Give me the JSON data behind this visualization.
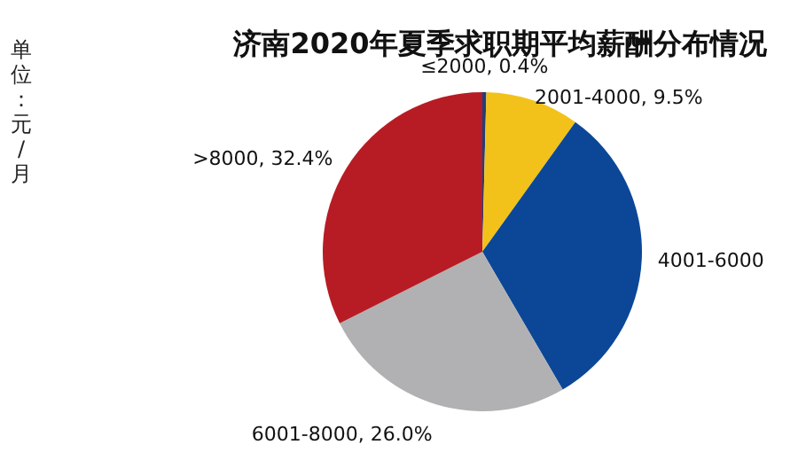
{
  "chart_data": {
    "type": "pie",
    "title": "济南2020年夏季求职期平均薪酬分布情况",
    "ylabel": "单位：元/月",
    "categories": [
      "≤2000",
      "2001-4000",
      "4001-6000",
      "6001-8000",
      ">8000"
    ],
    "values": [
      0.4,
      9.5,
      31.7,
      26.0,
      32.4
    ],
    "value_labels": [
      "0.4%",
      "9.5%",
      null,
      "26.0%",
      "32.4%"
    ],
    "colors": [
      "#1f3f7a",
      "#f2c21b",
      "#0b4796",
      "#b1b1b3",
      "#b71c24"
    ]
  }
}
